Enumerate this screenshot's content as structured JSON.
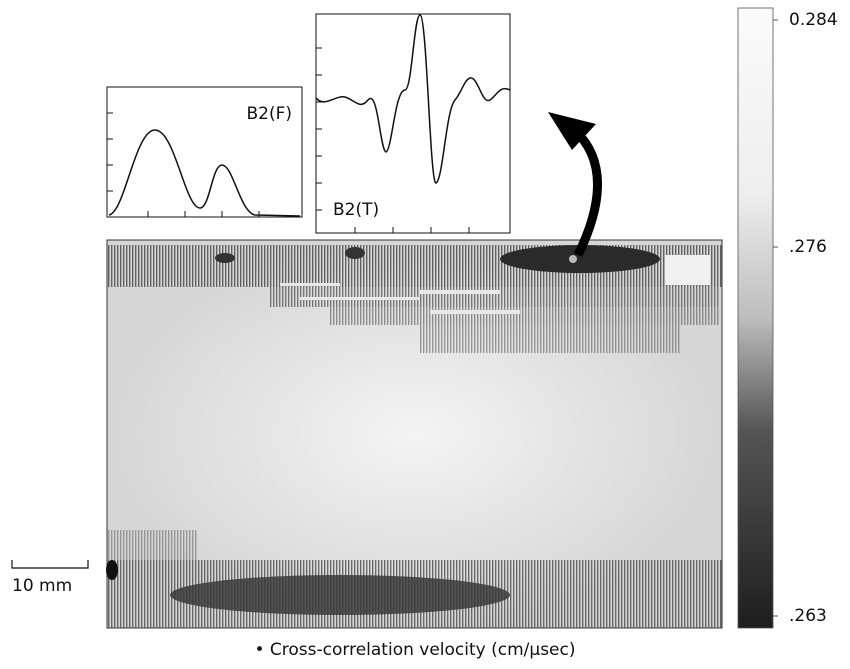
{
  "colorbar": {
    "clim": [
      0.263,
      0.284
    ],
    "ticks": [
      0.284,
      {
        "value": 0.276,
        "label": ".276"
      },
      {
        "value": 0.263,
        "label": ".263"
      }
    ]
  },
  "insets": [
    {
      "label": "B2(F)"
    },
    {
      "label": "B2(T)"
    }
  ],
  "scale_bar": {
    "label": "10 mm"
  },
  "caption": "• Cross-correlation velocity (cm/μsec)"
}
